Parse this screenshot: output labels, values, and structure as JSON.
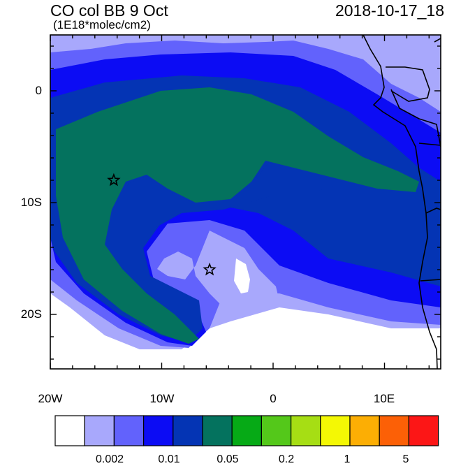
{
  "title": "CO col BB 9 Oct",
  "units": "(1E18*molec/cm2)",
  "timestamp": "2018-10-17_18",
  "axes": {
    "lat_labels": [
      "0",
      "10S",
      "20S"
    ],
    "lon_labels": [
      "20W",
      "10W",
      "0",
      "10E"
    ]
  },
  "colorbar": {
    "colors": [
      "#ffffff",
      "#a8a8fc",
      "#6262fc",
      "#0c0cf4",
      "#0434b4",
      "#04725e",
      "#06aa16",
      "#54c81a",
      "#a6de14",
      "#f4f804",
      "#fcae04",
      "#fc6006",
      "#fc1616"
    ],
    "labels": [
      "0.002",
      "0.01",
      "0.05",
      "0.2",
      "1",
      "5"
    ]
  },
  "field_colors": {
    "ocean_edge": "#6262fc",
    "mid": "#0c0cf4",
    "core_dark": "#0434b4",
    "plume": "#04725e",
    "low": "#a8a8fc",
    "zero": "#ffffff",
    "coast": "#000000"
  },
  "markers": [
    {
      "name": "star-west",
      "lon": -14.3,
      "lat": -8.0
    },
    {
      "name": "star-east",
      "lon": -5.7,
      "lat": -16.0
    }
  ]
}
